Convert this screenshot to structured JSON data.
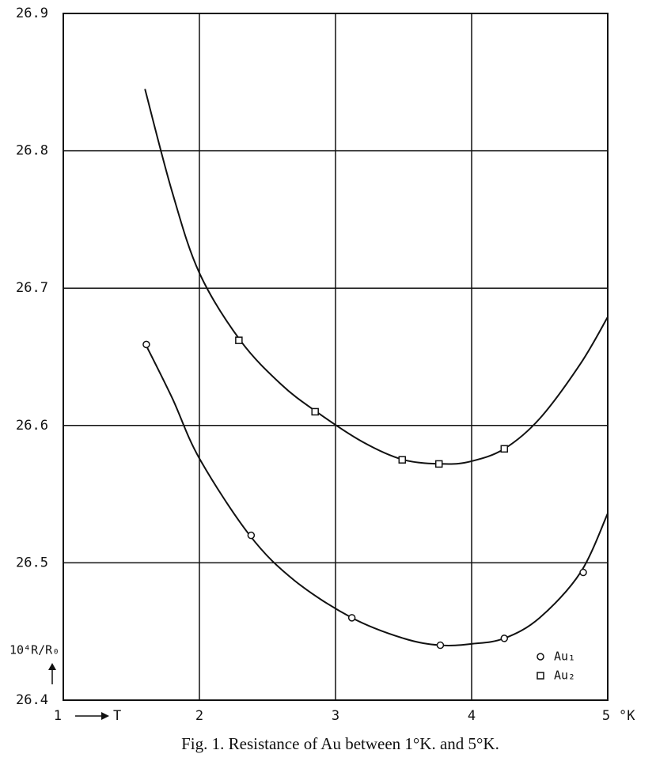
{
  "chart_data": {
    "type": "line",
    "caption": "Fig. 1. Resistance of Au between 1°K. and 5°K.",
    "xlabel": "T",
    "xunit": "°K",
    "ylabel": "10⁴R/R₀",
    "xlim": [
      1,
      5
    ],
    "ylim": [
      26.4,
      26.9
    ],
    "xticks": [
      1,
      2,
      3,
      4,
      5
    ],
    "yticks": [
      26.4,
      26.5,
      26.6,
      26.7,
      26.8,
      26.9
    ],
    "grid": true,
    "legend": "lower right",
    "series": [
      {
        "name": "Au₁",
        "marker": "circle",
        "color": "#111",
        "x": [
          1.61,
          2.38,
          3.12,
          3.77,
          4.24,
          4.82
        ],
        "values": [
          26.659,
          26.52,
          26.46,
          26.44,
          26.445,
          26.493
        ],
        "curve": {
          "x": [
            1.6,
            1.8,
            2.0,
            2.37,
            2.7,
            3.12,
            3.5,
            3.77,
            4.0,
            4.24,
            4.5,
            4.8,
            5.0
          ],
          "y": [
            26.66,
            26.62,
            26.576,
            26.52,
            26.487,
            26.46,
            26.445,
            26.44,
            26.441,
            26.445,
            26.46,
            26.493,
            26.536
          ]
        }
      },
      {
        "name": "Au₂",
        "marker": "square",
        "color": "#111",
        "x": [
          2.29,
          2.85,
          3.49,
          3.76,
          4.24
        ],
        "values": [
          26.662,
          26.61,
          26.575,
          26.572,
          26.583
        ],
        "curve": {
          "x": [
            1.6,
            1.8,
            2.0,
            2.3,
            2.6,
            2.86,
            3.2,
            3.5,
            3.8,
            4.0,
            4.24,
            4.5,
            4.8,
            5.0
          ],
          "y": [
            26.845,
            26.77,
            26.711,
            26.662,
            26.63,
            26.61,
            26.588,
            26.575,
            26.572,
            26.574,
            26.583,
            26.605,
            26.645,
            26.679
          ]
        }
      }
    ]
  }
}
